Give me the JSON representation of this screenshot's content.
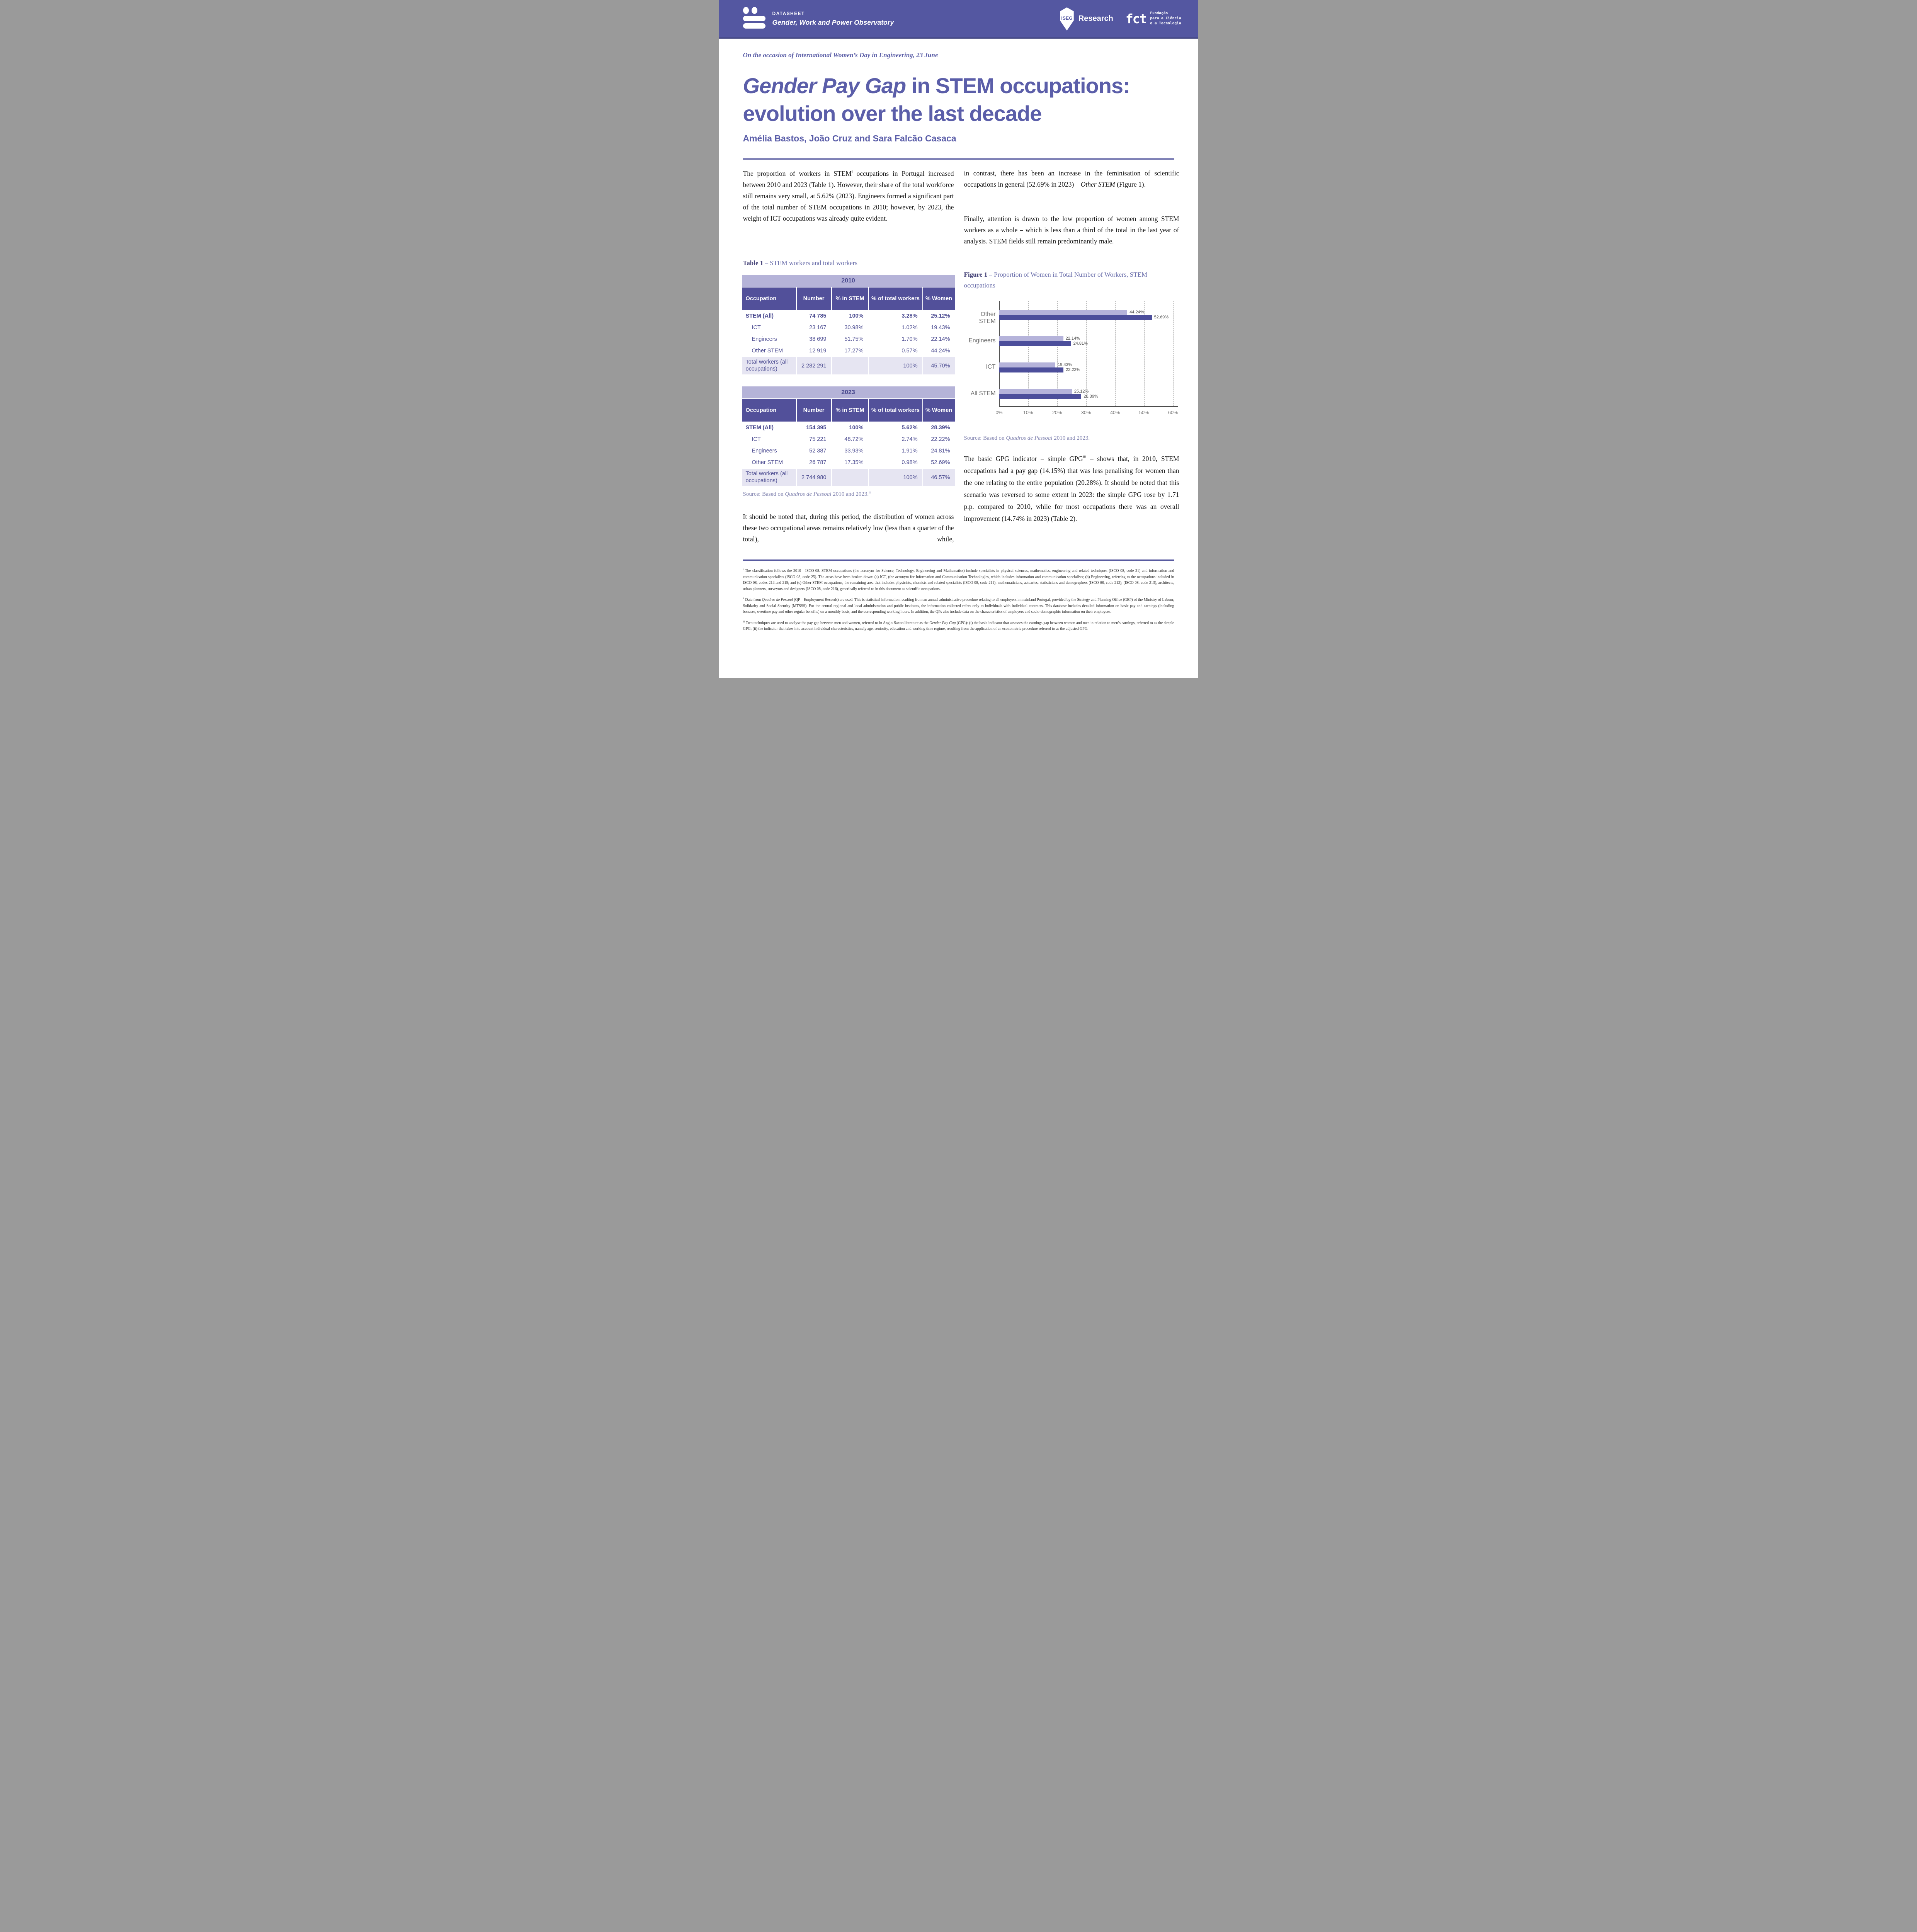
{
  "colors": {
    "header_bg": "#5457a1",
    "title_purple": "#5b5ea9",
    "table_band_bg": "#b5b3d8",
    "table_header_bg": "#52509a",
    "table_text": "#4d4d92",
    "total_row_bg": "#e6e5f2",
    "bar_2010": "#b5b3da",
    "bar_2023": "#4c4e9b",
    "rule": "#4c4f99",
    "source_text": "#8486b1"
  },
  "masthead": {
    "kicker": "DATASHEET",
    "brand": "Gender, Work and Power Observatory",
    "iseg_mark": "ISEG",
    "iseg_research": "Research",
    "fct_mark": "fct",
    "fct_lines": [
      "Fundação",
      "para a Ciência",
      "e a Tecnologia"
    ]
  },
  "occasion": "On the occasion of International Women’s Day in Engineering, 23 June",
  "title": {
    "italic": "Gender Pay Gap",
    "line1_rest": " in STEM occupations:",
    "line2": "evolution over the last decade"
  },
  "authors": "Amélia Bastos, João Cruz and Sara Falcão Casaca",
  "body": {
    "left_para1": {
      "pre": "The proportion of workers in STEM",
      "sup": "i",
      "post": " occupations in Portugal increased between 2010 and 2023 (Table 1). However, their share of the total workforce still remains very small, at 5.62% (2023). Engineers formed a significant part of the total number of STEM occupations in 2010; however, by 2023, the weight of ICT occupations was already quite evident."
    },
    "left_para2": "It should be noted that, during this period, the distribution of women across these two occupational areas remains relatively low (less than a quarter of the total), while,",
    "right_para1": {
      "pre": "in contrast, there has been an increase in the feminisation of scientific occupations in general (52.69% in 2023) – ",
      "italic": "Other STEM",
      "post": " (Figure 1)."
    },
    "right_para2": "Finally, attention is drawn to the low proportion of women among STEM workers as a whole – which is less than a third of the total in the last year of analysis. STEM fields still remain predominantly male.",
    "gpg_para": {
      "pre": "The basic GPG indicator – simple GPG",
      "sup": "iii",
      "post": " – shows that, in 2010, STEM occupations had a pay gap (14.15%) that was less penalising for women than the one relating to the entire population (20.28%). It should be noted that this scenario was reversed to some extent in 2023: the simple GPG rose by 1.71 p.p. compared to 2010, while for most occupations there was an overall improvement (14.74% in 2023) (Table 2)."
    }
  },
  "table_caption": {
    "bold": "Table 1",
    "rest": " – STEM workers and total workers"
  },
  "figure_caption": {
    "bold": "Figure 1",
    "rest": " – Proportion of Women in Total Number of Workers, STEM occupations"
  },
  "tables": [
    {
      "year": "2010",
      "columns": [
        "Occupation",
        "Number",
        "% in STEM",
        "% of total workers",
        "% Women"
      ],
      "rows": [
        {
          "label": "STEM (All)",
          "bold": true,
          "indent": false,
          "cells": [
            "74 785",
            "100%",
            "3.28%",
            "25.12%"
          ]
        },
        {
          "label": "ICT",
          "bold": false,
          "indent": true,
          "cells": [
            "23 167",
            "30.98%",
            "1.02%",
            "19.43%"
          ]
        },
        {
          "label": "Engineers",
          "bold": false,
          "indent": true,
          "cells": [
            "38 699",
            "51.75%",
            "1.70%",
            "22.14%"
          ]
        },
        {
          "label": "Other STEM",
          "bold": false,
          "indent": true,
          "cells": [
            "12 919",
            "17.27%",
            "0.57%",
            "44.24%"
          ]
        }
      ],
      "total_row": {
        "label": "Total workers (all occupations)",
        "cells": [
          "2 282 291",
          "",
          "100%",
          "45.70%"
        ]
      }
    },
    {
      "year": "2023",
      "columns": [
        "Occupation",
        "Number",
        "% in STEM",
        "% of total workers",
        "% Women"
      ],
      "rows": [
        {
          "label": "STEM (All)",
          "bold": true,
          "indent": false,
          "cells": [
            "154 395",
            "100%",
            "5.62%",
            "28.39%"
          ]
        },
        {
          "label": "ICT",
          "bold": false,
          "indent": true,
          "cells": [
            "75 221",
            "48.72%",
            "2.74%",
            "22.22%"
          ]
        },
        {
          "label": "Engineers",
          "bold": false,
          "indent": true,
          "cells": [
            "52 387",
            "33.93%",
            "1.91%",
            "24.81%"
          ]
        },
        {
          "label": "Other STEM",
          "bold": false,
          "indent": true,
          "cells": [
            "26 787",
            "17.35%",
            "0.98%",
            "52.69%"
          ]
        }
      ],
      "total_row": {
        "label": "Total workers (all occupations)",
        "cells": [
          "2 744 980",
          "",
          "100%",
          "46.57%"
        ]
      }
    }
  ],
  "sources": {
    "left": {
      "pre": "Source: Based on ",
      "italic": "Quadros de Pessoal",
      "post": " 2010 and 2023.",
      "sup": "ii"
    },
    "right": {
      "pre": "Source: Based on ",
      "italic": "Quadros de Pessoal",
      "post": " 2010 and 2023."
    }
  },
  "figure": {
    "chart_data": {
      "type": "bar",
      "orientation": "horizontal",
      "categories": [
        "Other STEM",
        "Engineers",
        "ICT",
        "All STEM"
      ],
      "series": [
        {
          "name": "2010",
          "color": "#b5b3da",
          "values": [
            44.24,
            22.14,
            19.43,
            25.12
          ],
          "labels": [
            "44.24%",
            "22.14%",
            "19.43%",
            "25.12%"
          ]
        },
        {
          "name": "2023",
          "color": "#4c4e9b",
          "values": [
            52.69,
            24.81,
            22.22,
            28.39
          ],
          "labels": [
            "52.69%",
            "24.81%",
            "22.22%",
            "28.39%"
          ]
        }
      ],
      "xlim": [
        0,
        60
      ],
      "xticks": [
        "0%",
        "10%",
        "20%",
        "30%",
        "40%",
        "50%",
        "60%"
      ],
      "grid": "dashed-vertical",
      "legend": "none"
    }
  },
  "footnotes": [
    {
      "sup": "i",
      "parts": [
        {
          "text": "The classification follows the 2010 - ISCO-08. STEM occupations (the acronym for Science, Technology, Engineering and Mathematics) include specialists in physical sciences, mathematics, engineering and related techniques (ISCO 08, code 21) and information and communication specialists (ISCO 08, code 25). The areas have been broken down: (a) ICT, (the acronym for Information and Communication Technologies, which includes information and communication specialists; (b) Engineering, referring to the occupations included in ISCO 08, codes 214 and 215; and (c) Other STEM occupations, the remaining area that includes physicists, chemists and related specialists (ISCO 08, code 211), mathematicians, actuaries, statisticians and demographers (ISCO 08, code 212), (ISCO 08, code 213), architects, urban planners, surveyors and designers (ISCO 08, code 216), generically referred to in this document as scientific occupations."
        }
      ]
    },
    {
      "sup": "ii",
      "parts": [
        {
          "text": "Data from "
        },
        {
          "text": "Quadros de Pessoal",
          "italic": true
        },
        {
          "text": " (QP – Employment Records) are used. This is statistical information resulting from an annual administrative procedure relating to all employers in mainland Portugal, provided by the Strategy and Planning Office (GEP) of the Ministry of Labour, Solidarity and Social Security (MTSSS). For the central regional and local administration and public institutes, the information collected refers only to individuals with individual contracts. This database includes detailed information on basic pay and earnings (including bonuses, overtime pay and other regular benefits) on a monthly basis, and the corresponding working hours. In addition, the QPs also include data on the characteristics of employers and socio-demographic information on their employees."
        }
      ]
    },
    {
      "sup": "iii",
      "parts": [
        {
          "text": "Two techniques are used to analyse the pay gap between men and women, referred to in Anglo-Saxon literature as the "
        },
        {
          "text": "Gender Pay Gap",
          "italic": true
        },
        {
          "text": " (GPG): (i) the basic indicator that assesses the earnings gap between women and men in relation to men’s earnings, referred to as the simple GPG; (ii) the indicator that takes into account individual characteristics, namely age, seniority, education and working time regime, resulting from the application of an econometric procedure referred to as the adjusted GPG."
        }
      ]
    }
  ]
}
